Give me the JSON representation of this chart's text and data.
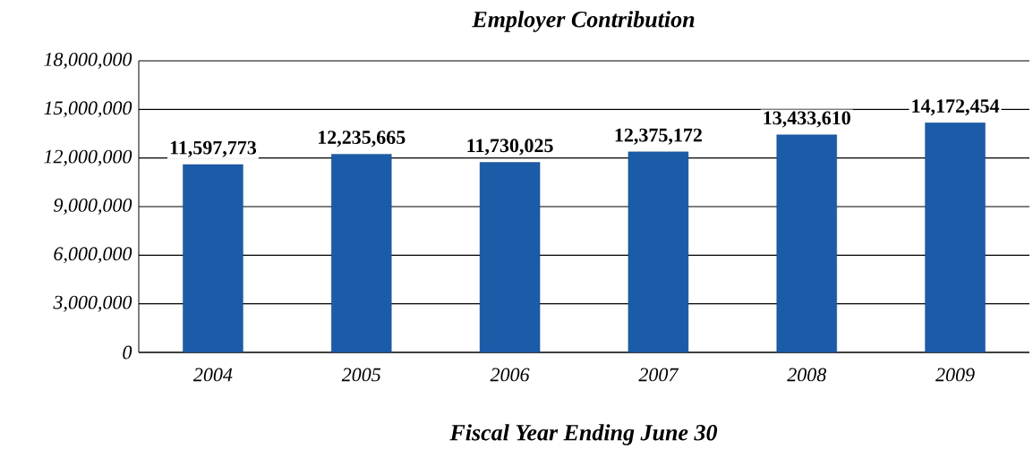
{
  "chart_data": {
    "type": "bar",
    "title": "Employer Contribution",
    "xlabel": "Fiscal Year Ending June 30",
    "categories": [
      "2004",
      "2005",
      "2006",
      "2007",
      "2008",
      "2009"
    ],
    "values": [
      11597773,
      12235665,
      11730025,
      12375172,
      13433610,
      14172454
    ],
    "value_labels": [
      "11,597,773",
      "12,235,665",
      "11,730,025",
      "12,375,172",
      "13,433,610",
      "14,172,454"
    ],
    "color": "#1a5ca8",
    "ylim": [
      0,
      18000000
    ],
    "yticks": [
      {
        "value": 0,
        "label": "0"
      },
      {
        "value": 3000000,
        "label": "3,000,000"
      },
      {
        "value": 6000000,
        "label": "6,000,000"
      },
      {
        "value": 9000000,
        "label": "9,000,000"
      },
      {
        "value": 12000000,
        "label": "12,000,000"
      },
      {
        "value": 15000000,
        "label": "15,000,000"
      },
      {
        "value": 18000000,
        "label": "18,000,000"
      }
    ],
    "grid": "y"
  }
}
